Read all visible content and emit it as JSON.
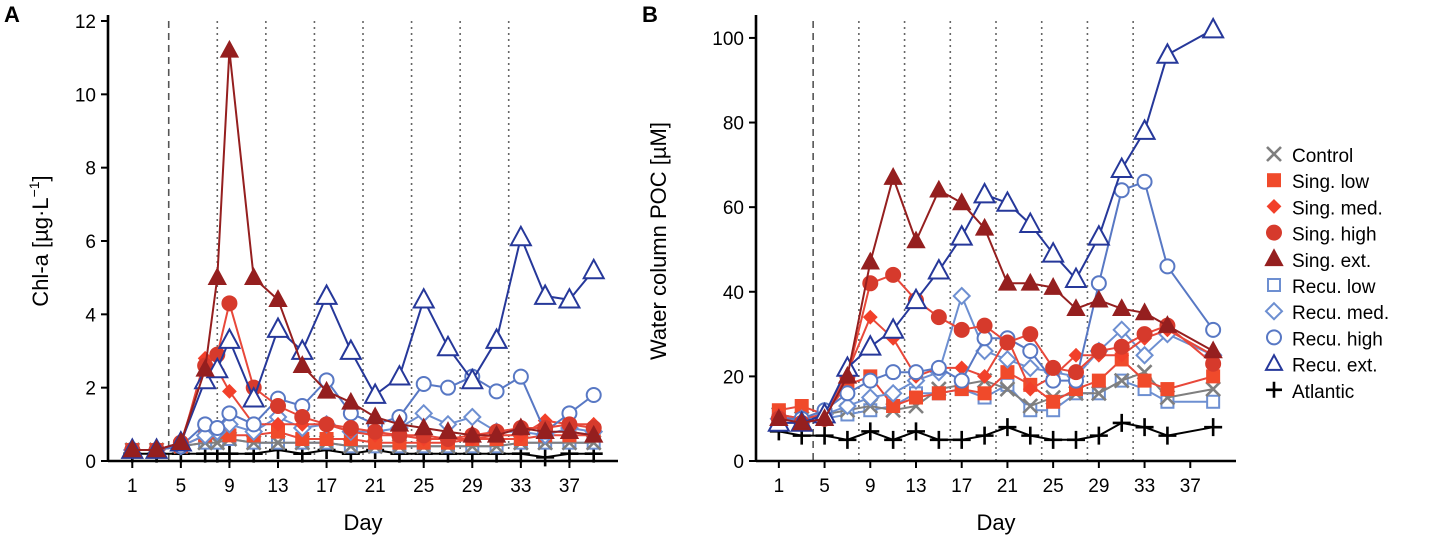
{
  "chart_data": [
    {
      "type": "line",
      "panel_label": "A",
      "xlabel": "Day",
      "ylabel_main": "Chl-a [",
      "ylabel_units": "µg·L",
      "ylabel_sup": "−1",
      "ylabel_close": "]",
      "xlim": [
        -1,
        41
      ],
      "ylim": [
        0,
        12
      ],
      "xticks": [
        1,
        5,
        9,
        13,
        17,
        21,
        25,
        29,
        33,
        37
      ],
      "xtick_labels": [
        "1",
        "5",
        "9",
        "13",
        "17",
        "21",
        "25",
        "29",
        "33",
        "37"
      ],
      "yticks": [
        0,
        2,
        4,
        6,
        8,
        10,
        12
      ],
      "ytick_labels": [
        "0",
        "2",
        "4",
        "6",
        "8",
        "10",
        "12"
      ],
      "vlines_dashed": [
        4
      ],
      "vlines_dotted": [
        8,
        12,
        16,
        20,
        24,
        28,
        32
      ],
      "x": [
        1,
        3,
        5,
        7,
        8,
        9,
        11,
        13,
        15,
        17,
        19,
        21,
        23,
        25,
        27,
        29,
        31,
        33,
        35,
        37,
        39
      ],
      "series": [
        {
          "name": "Control",
          "values": [
            0.3,
            0.3,
            0.4,
            0.5,
            0.5,
            0.6,
            0.5,
            0.5,
            0.5,
            0.5,
            0.4,
            0.4,
            0.4,
            0.4,
            0.4,
            0.4,
            0.4,
            0.5,
            0.5,
            0.5,
            0.5
          ]
        },
        {
          "name": "Sing. low",
          "values": [
            0.3,
            0.3,
            0.4,
            0.7,
            0.8,
            0.7,
            0.7,
            0.8,
            0.6,
            0.6,
            0.6,
            0.5,
            0.5,
            0.5,
            0.5,
            0.6,
            0.6,
            0.6,
            0.7,
            0.7,
            0.7
          ]
        },
        {
          "name": "Sing. med.",
          "values": [
            0.3,
            0.3,
            0.4,
            2.8,
            2.5,
            1.9,
            1.0,
            1.0,
            1.0,
            1.0,
            0.8,
            0.7,
            0.7,
            0.6,
            0.6,
            0.6,
            0.7,
            0.7,
            1.1,
            1.0,
            1.0
          ]
        },
        {
          "name": "Sing. high",
          "values": [
            0.3,
            0.3,
            0.5,
            2.6,
            2.9,
            4.3,
            2.0,
            1.5,
            1.2,
            1.0,
            0.9,
            0.8,
            0.7,
            0.7,
            0.6,
            0.7,
            0.8,
            0.9,
            0.9,
            1.0,
            0.9
          ]
        },
        {
          "name": "Sing. ext.",
          "values": [
            0.3,
            0.3,
            0.5,
            2.5,
            5.0,
            11.2,
            5.0,
            4.4,
            2.6,
            1.9,
            1.6,
            1.2,
            1.0,
            0.9,
            0.8,
            0.7,
            0.7,
            0.9,
            0.8,
            0.8,
            0.7
          ]
        },
        {
          "name": "Recu. low",
          "values": [
            0.3,
            0.3,
            0.4,
            0.5,
            0.5,
            0.6,
            0.5,
            0.5,
            0.5,
            0.5,
            0.4,
            0.4,
            0.4,
            0.4,
            0.4,
            0.4,
            0.4,
            0.5,
            0.5,
            0.5,
            0.5
          ]
        },
        {
          "name": "Recu. med.",
          "values": [
            0.3,
            0.3,
            0.4,
            0.7,
            0.8,
            1.0,
            0.8,
            1.2,
            0.9,
            1.0,
            0.8,
            0.8,
            0.9,
            1.3,
            1.0,
            1.2,
            0.8,
            0.8,
            0.7,
            0.9,
            0.8
          ]
        },
        {
          "name": "Recu. high",
          "values": [
            0.3,
            0.3,
            0.4,
            1.0,
            0.9,
            1.3,
            1.0,
            1.7,
            1.5,
            2.2,
            1.3,
            1.0,
            1.2,
            2.1,
            2.0,
            2.3,
            1.9,
            2.3,
            0.8,
            1.3,
            1.8
          ]
        },
        {
          "name": "Recu. ext.",
          "values": [
            0.3,
            0.3,
            0.5,
            2.2,
            2.5,
            3.3,
            1.7,
            3.6,
            3.0,
            4.5,
            3.0,
            1.8,
            2.3,
            4.4,
            3.1,
            2.2,
            3.3,
            6.1,
            4.5,
            4.4,
            5.2
          ]
        },
        {
          "name": "Atlantic",
          "values": [
            0.2,
            0.2,
            0.2,
            0.2,
            0.2,
            0.2,
            0.2,
            0.3,
            0.2,
            0.3,
            0.2,
            0.3,
            0.2,
            0.2,
            0.2,
            0.2,
            0.2,
            0.2,
            0.1,
            0.2,
            0.2
          ]
        }
      ]
    },
    {
      "type": "line",
      "panel_label": "B",
      "xlabel": "Day",
      "ylabel_main": "Water column POC [",
      "ylabel_units": "µM",
      "ylabel_sup": "",
      "ylabel_close": "]",
      "xlim": [
        -1,
        41
      ],
      "ylim": [
        0,
        104
      ],
      "xticks": [
        1,
        5,
        9,
        13,
        17,
        21,
        25,
        29,
        33,
        37
      ],
      "xtick_labels": [
        "1",
        "5",
        "9",
        "13",
        "17",
        "21",
        "25",
        "29",
        "33",
        "37"
      ],
      "yticks": [
        0,
        20,
        40,
        60,
        80,
        100
      ],
      "ytick_labels": [
        "0",
        "20",
        "40",
        "60",
        "80",
        "100"
      ],
      "vlines_dashed": [
        4
      ],
      "vlines_dotted": [
        8,
        12,
        16,
        20,
        24,
        28,
        32
      ],
      "x": [
        1,
        3,
        5,
        7,
        9,
        11,
        13,
        15,
        17,
        19,
        21,
        23,
        25,
        27,
        29,
        31,
        33,
        35,
        39
      ],
      "series": [
        {
          "name": "Control",
          "values": [
            11,
            10,
            11,
            12,
            13,
            12,
            13,
            17,
            18,
            19,
            17,
            13,
            15,
            16,
            16,
            19,
            21,
            15,
            17
          ]
        },
        {
          "name": "Sing. low",
          "values": [
            12,
            13,
            11,
            18,
            20,
            13,
            15,
            16,
            17,
            16,
            21,
            18,
            14,
            17,
            19,
            24,
            19,
            17,
            20
          ]
        },
        {
          "name": "Sing. med.",
          "values": [
            11,
            10,
            11,
            21,
            34,
            29,
            20,
            22,
            22,
            20,
            29,
            17,
            20,
            25,
            25,
            25,
            29,
            31,
            25
          ]
        },
        {
          "name": "Sing. high",
          "values": [
            10,
            9,
            10,
            20,
            42,
            44,
            38,
            34,
            31,
            32,
            28,
            30,
            22,
            21,
            26,
            27,
            30,
            32,
            23
          ]
        },
        {
          "name": "Sing. ext.",
          "values": [
            10,
            9,
            10,
            20,
            47,
            67,
            52,
            64,
            61,
            55,
            42,
            42,
            41,
            36,
            38,
            36,
            35,
            32,
            26
          ]
        },
        {
          "name": "Recu. low",
          "values": [
            11,
            9,
            10,
            11,
            12,
            13,
            16,
            16,
            17,
            15,
            18,
            12,
            12,
            16,
            16,
            19,
            17,
            14,
            14
          ]
        },
        {
          "name": "Recu. med.",
          "values": [
            10,
            10,
            11,
            13,
            15,
            16,
            19,
            21,
            39,
            26,
            24,
            22,
            21,
            20,
            26,
            31,
            25,
            30,
            25
          ]
        },
        {
          "name": "Recu. high",
          "values": [
            10,
            10,
            12,
            16,
            19,
            21,
            21,
            22,
            19,
            29,
            29,
            26,
            19,
            19,
            42,
            64,
            66,
            46,
            31
          ]
        },
        {
          "name": "Recu. ext.",
          "values": [
            9,
            9,
            11,
            22,
            27,
            31,
            38,
            45,
            53,
            63,
            61,
            56,
            49,
            43,
            53,
            69,
            78,
            96,
            102
          ]
        },
        {
          "name": "Atlantic",
          "values": [
            7,
            6,
            6,
            5,
            7,
            5,
            7,
            5,
            5,
            6,
            8,
            6,
            5,
            5,
            6,
            9,
            8,
            6,
            8
          ]
        }
      ]
    }
  ],
  "legend": {
    "entries": [
      "Control",
      "Sing. low",
      "Sing. med.",
      "Sing. high",
      "Sing. ext.",
      "Recu. low",
      "Recu. med.",
      "Recu. high",
      "Recu. ext.",
      "Atlantic"
    ]
  },
  "style": {
    "control": "#7f7f7f",
    "single_line": "#e8483a",
    "single_low": "#f04a2b",
    "single_med": "#f2402a",
    "single_high": "#d63a2c",
    "single_ext": "#951f1f",
    "recu_light": "#6d8fd1",
    "recu_mid": "#5878c4",
    "recu_dark": "#26389a",
    "atlantic": "#000000"
  }
}
